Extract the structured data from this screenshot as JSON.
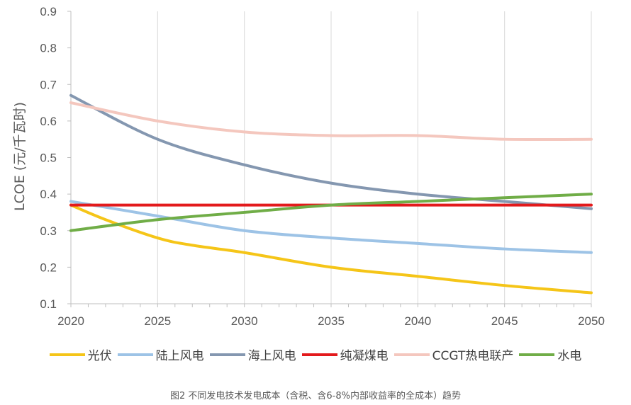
{
  "chart_data": {
    "type": "line",
    "ylabel": "LCOE (元/千瓦时)",
    "xlabel": "",
    "xlim": [
      2020,
      2050
    ],
    "ylim": [
      0.1,
      0.9
    ],
    "x_ticks": [
      "2020",
      "2025",
      "2030",
      "2035",
      "2040",
      "2045",
      "2050"
    ],
    "y_ticks": [
      "0.9",
      "0.8",
      "0.7",
      "0.6",
      "0.5",
      "0.4",
      "0.3",
      "0.2",
      "0.1"
    ],
    "grid": "vertical",
    "legend_position": "bottom",
    "series": [
      {
        "name": "光伏",
        "color": "#F5C518",
        "x": [
          2020,
          2022,
          2025,
          2027,
          2030,
          2035,
          2040,
          2045,
          2050
        ],
        "values": [
          0.37,
          0.33,
          0.28,
          0.26,
          0.24,
          0.2,
          0.175,
          0.15,
          0.13
        ]
      },
      {
        "name": "陆上风电",
        "color": "#9DC3E6",
        "x": [
          2020,
          2025,
          2030,
          2035,
          2040,
          2045,
          2050
        ],
        "values": [
          0.38,
          0.34,
          0.3,
          0.28,
          0.265,
          0.25,
          0.24
        ]
      },
      {
        "name": "海上风电",
        "color": "#8497B0",
        "x": [
          2020,
          2025,
          2030,
          2035,
          2040,
          2045,
          2050
        ],
        "values": [
          0.67,
          0.55,
          0.48,
          0.43,
          0.4,
          0.38,
          0.36
        ]
      },
      {
        "name": "纯凝煤电",
        "color": "#E31A1C",
        "x": [
          2020,
          2025,
          2030,
          2035,
          2040,
          2045,
          2050
        ],
        "values": [
          0.37,
          0.37,
          0.37,
          0.37,
          0.37,
          0.37,
          0.37
        ]
      },
      {
        "name": "CCGT热电联产",
        "color": "#F4C7BE",
        "x": [
          2020,
          2025,
          2030,
          2035,
          2040,
          2045,
          2050
        ],
        "values": [
          0.65,
          0.6,
          0.57,
          0.56,
          0.56,
          0.55,
          0.55
        ]
      },
      {
        "name": "水电",
        "color": "#70AD47",
        "x": [
          2020,
          2025,
          2030,
          2035,
          2040,
          2045,
          2050
        ],
        "values": [
          0.3,
          0.33,
          0.35,
          0.37,
          0.38,
          0.39,
          0.4
        ]
      }
    ]
  },
  "caption": "图2 不同发电技术发电成本（含税、含6-8%内部收益率的全成本）趋势"
}
